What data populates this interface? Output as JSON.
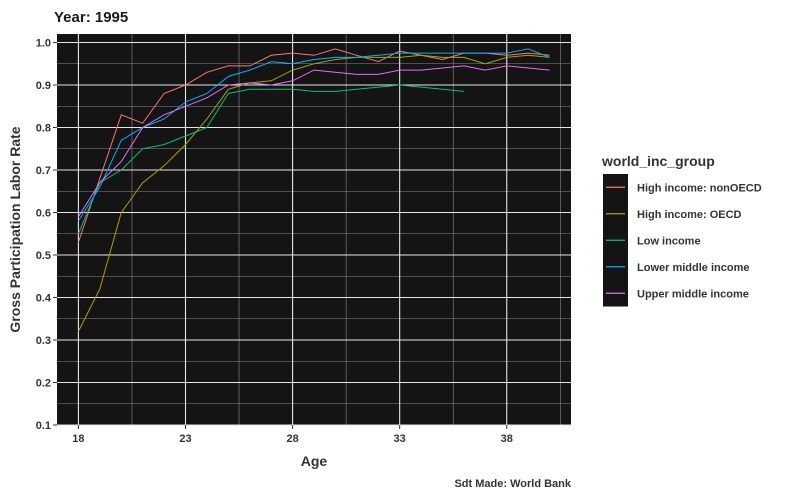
{
  "chart_data": {
    "type": "line",
    "title": "Year: 1995",
    "xlabel": "Age",
    "ylabel": "Gross Participation Labor Rate",
    "caption": "Sdt Made: World Bank",
    "xlim": [
      17,
      41
    ],
    "ylim": [
      0.1,
      1.02
    ],
    "x_ticks": [
      18,
      23,
      28,
      33,
      38
    ],
    "y_ticks": [
      0.1,
      0.2,
      0.3,
      0.4,
      0.5,
      0.6,
      0.7,
      0.8,
      0.9,
      1.0
    ],
    "y_tick_labels": [
      "0.1",
      "0.2",
      "0.3",
      "0.4",
      "0.5",
      "0.6",
      "0.7",
      "0.8",
      "0.9",
      "1.0"
    ],
    "grid": true,
    "background": "#141414",
    "legend": {
      "title": "world_inc_group",
      "position": "right"
    },
    "series": [
      {
        "name": "High income: nonOECD",
        "color": "#F8766D",
        "x": [
          18,
          19,
          20,
          21,
          22,
          23,
          24,
          25,
          26,
          27,
          28,
          29,
          30,
          31,
          32,
          33,
          34,
          35,
          36,
          37,
          38,
          39,
          40
        ],
        "y": [
          0.53,
          0.68,
          0.83,
          0.81,
          0.88,
          0.9,
          0.93,
          0.945,
          0.945,
          0.97,
          0.975,
          0.97,
          0.985,
          0.97,
          0.955,
          0.98,
          0.97,
          0.96,
          0.975,
          0.975,
          0.97,
          0.975,
          0.97
        ]
      },
      {
        "name": "High income: OECD",
        "color": "#A3A500",
        "x": [
          18,
          19,
          20,
          21,
          22,
          23,
          24,
          25,
          26,
          27,
          28,
          29,
          30,
          31,
          32,
          33,
          34,
          35,
          36,
          37,
          38,
          39,
          40
        ],
        "y": [
          0.32,
          0.42,
          0.6,
          0.67,
          0.71,
          0.76,
          0.82,
          0.89,
          0.905,
          0.91,
          0.935,
          0.95,
          0.96,
          0.965,
          0.965,
          0.965,
          0.97,
          0.965,
          0.965,
          0.95,
          0.965,
          0.97,
          0.965
        ]
      },
      {
        "name": "Low income",
        "color": "#00BF7D",
        "x": [
          18,
          19,
          20,
          21,
          22,
          23,
          24,
          25,
          26,
          27,
          28,
          29,
          30,
          31,
          32,
          33,
          34,
          35,
          36
        ],
        "y": [
          0.55,
          0.67,
          0.7,
          0.75,
          0.76,
          0.78,
          0.8,
          0.88,
          0.89,
          0.89,
          0.89,
          0.885,
          0.885,
          0.89,
          0.895,
          0.9,
          0.895,
          0.89,
          0.885
        ]
      },
      {
        "name": "Lower middle income",
        "color": "#00B0F6",
        "x": [
          18,
          19,
          20,
          21,
          22,
          23,
          24,
          25,
          26,
          27,
          28,
          29,
          30,
          31,
          32,
          33,
          34,
          35,
          36,
          37,
          38,
          39,
          40
        ],
        "y": [
          0.58,
          0.66,
          0.77,
          0.8,
          0.82,
          0.86,
          0.88,
          0.92,
          0.935,
          0.955,
          0.95,
          0.96,
          0.965,
          0.965,
          0.97,
          0.975,
          0.975,
          0.975,
          0.975,
          0.975,
          0.975,
          0.985,
          0.965
        ]
      },
      {
        "name": "Upper middle income",
        "color": "#E76BF3",
        "x": [
          18,
          19,
          20,
          21,
          22,
          23,
          24,
          25,
          26,
          27,
          28,
          29,
          30,
          31,
          32,
          33,
          34,
          35,
          36,
          37,
          38,
          39,
          40
        ],
        "y": [
          0.59,
          0.67,
          0.72,
          0.8,
          0.83,
          0.85,
          0.87,
          0.9,
          0.905,
          0.9,
          0.91,
          0.935,
          0.93,
          0.925,
          0.925,
          0.935,
          0.935,
          0.94,
          0.945,
          0.935,
          0.945,
          0.94,
          0.935
        ]
      }
    ]
  }
}
